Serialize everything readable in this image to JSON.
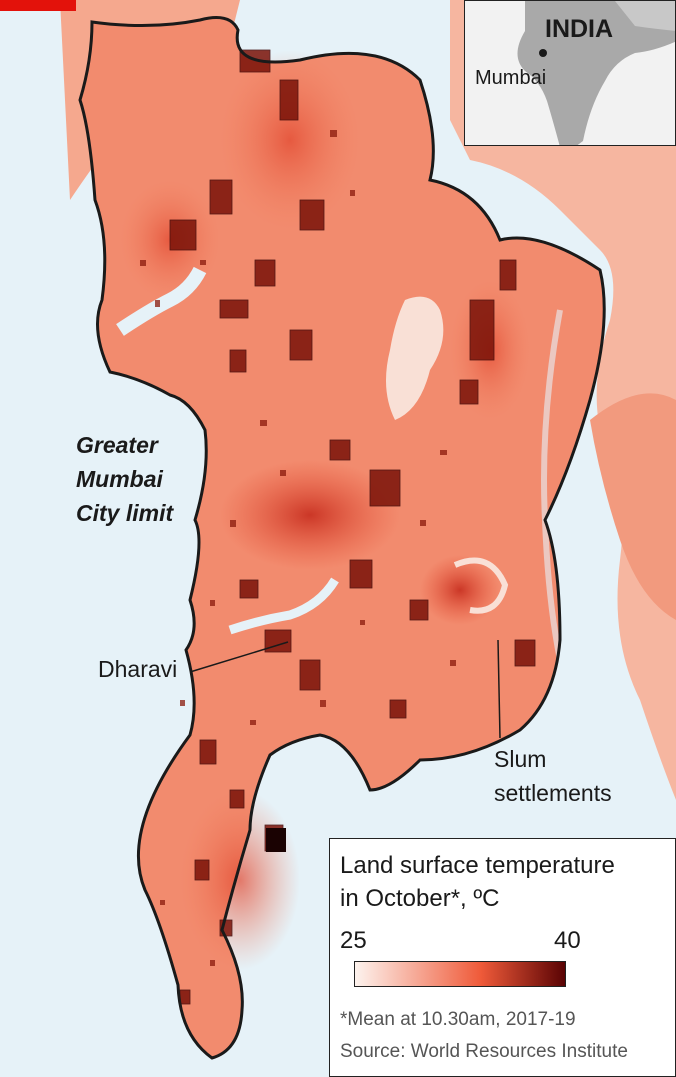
{
  "labels": {
    "city_limit": [
      "Greater",
      "Mumbai",
      "City limit"
    ],
    "dharavi": "Dharavi",
    "slum": [
      "Slum",
      "settlements"
    ]
  },
  "inset": {
    "country": "INDIA",
    "city": "Mumbai"
  },
  "legend": {
    "title_lines": [
      "Land surface temperature",
      "in October*, ºC"
    ],
    "min": "25",
    "max": "40",
    "note": "*Mean at 10.30am, 2017-19",
    "source": "Source: World Resources Institute"
  },
  "colors": {
    "sea": "#e6f2f8",
    "land_mainland": "#f6b6a0",
    "land_city": "#f28b6e",
    "hotspot": "#d2301e",
    "slum_fill": "#7a1208",
    "scale_low": "#fdf3ee",
    "scale_mid": "#ef5a39",
    "scale_high": "#5a0304",
    "accent": "#e3120b"
  }
}
